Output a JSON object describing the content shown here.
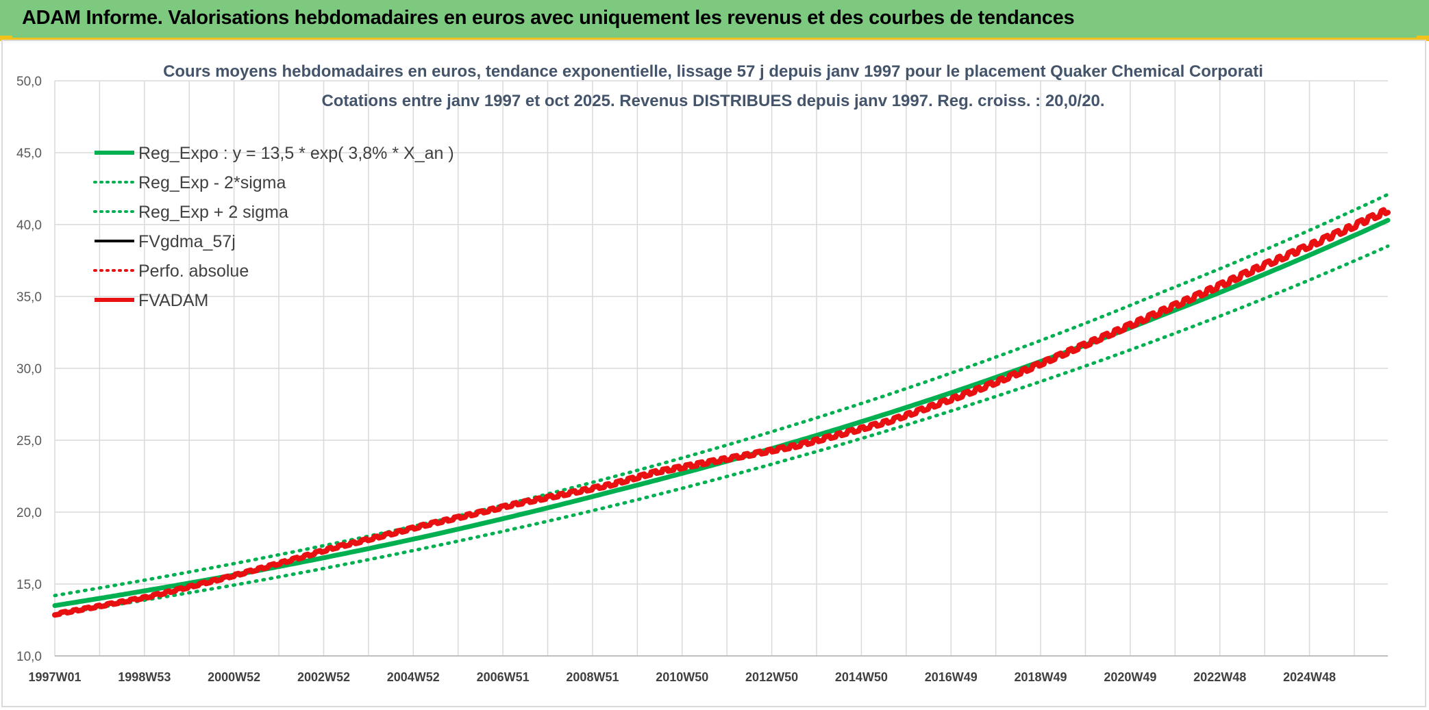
{
  "header": {
    "title": "ADAM Informe. Valorisations hebdomadaires en euros avec uniquement les revenus et des courbes de tendances"
  },
  "colors": {
    "header_bg": "#7dc97f",
    "accent": "#f2c21a",
    "reg_green": "#00b050",
    "red": "#e81010",
    "black": "#000000"
  },
  "chart_data": {
    "type": "line",
    "title": "Cours moyens hebdomadaires en euros, tendance exponentielle, lissage 57 j depuis janv 1997 pour le placement Quaker Chemical Corporati",
    "subtitle": "Cotations entre janv 1997 et oct 2025. Revenus DISTRIBUES depuis janv 1997. Reg. croiss. : 20,0/20.",
    "xlabel": "",
    "ylabel": "",
    "ylim": [
      10,
      50
    ],
    "yticks": [
      "10,0",
      "15,0",
      "20,0",
      "25,0",
      "30,0",
      "35,0",
      "40,0",
      "45,0",
      "50,0"
    ],
    "xticks": [
      "1997W01",
      "1998W53",
      "2000W52",
      "2002W52",
      "2004W52",
      "2006W51",
      "2008W51",
      "2010W50",
      "2012W50",
      "2014W50",
      "2016W49",
      "2018W49",
      "2020W49",
      "2022W48",
      "2024W48"
    ],
    "x_range_years": [
      1997.0,
      2025.8
    ],
    "grid": true,
    "legend_position": "top-left",
    "series": [
      {
        "name": "Reg_Expo : y = 13,5 * exp( 3,8% *  X_an )",
        "style": "solid",
        "color": "#00b050",
        "points": [
          [
            1997.0,
            13.5
          ],
          [
            2001.0,
            15.7
          ],
          [
            2005.0,
            18.3
          ],
          [
            2009.0,
            21.4
          ],
          [
            2013.0,
            24.9
          ],
          [
            2017.0,
            29.0
          ],
          [
            2021.0,
            33.8
          ],
          [
            2025.8,
            40.3
          ]
        ]
      },
      {
        "name": "Reg_Exp - 2*sigma",
        "style": "dotted",
        "color": "#00b050",
        "points": [
          [
            1997.0,
            12.9
          ],
          [
            2001.0,
            15.0
          ],
          [
            2005.0,
            17.5
          ],
          [
            2009.0,
            20.4
          ],
          [
            2013.0,
            23.8
          ],
          [
            2017.0,
            27.7
          ],
          [
            2021.0,
            32.2
          ],
          [
            2025.8,
            38.5
          ]
        ]
      },
      {
        "name": "Reg_Exp + 2 sigma",
        "style": "dotted",
        "color": "#00b050",
        "points": [
          [
            1997.0,
            14.2
          ],
          [
            2001.0,
            16.5
          ],
          [
            2005.0,
            19.2
          ],
          [
            2009.0,
            22.4
          ],
          [
            2013.0,
            26.1
          ],
          [
            2017.0,
            30.4
          ],
          [
            2021.0,
            35.4
          ],
          [
            2025.8,
            42.1
          ]
        ]
      },
      {
        "name": "FVgdma_57j",
        "style": "solid",
        "color": "#000000",
        "points": []
      },
      {
        "name": "Perfo. absolue",
        "style": "dotted",
        "color": "#e81010",
        "points": []
      },
      {
        "name": "FVADAM",
        "style": "solid",
        "color": "#e81010",
        "points": [
          [
            1997.0,
            12.9
          ],
          [
            1999.0,
            14.1
          ],
          [
            2001.0,
            15.7
          ],
          [
            2003.0,
            17.5
          ],
          [
            2005.0,
            19.1
          ],
          [
            2007.0,
            20.6
          ],
          [
            2009.0,
            21.9
          ],
          [
            2010.0,
            22.8
          ],
          [
            2011.0,
            23.4
          ],
          [
            2013.0,
            24.6
          ],
          [
            2015.0,
            26.3
          ],
          [
            2017.0,
            28.6
          ],
          [
            2019.0,
            31.3
          ],
          [
            2021.0,
            34.1
          ],
          [
            2023.0,
            37.0
          ],
          [
            2025.8,
            41.0
          ]
        ]
      }
    ]
  }
}
